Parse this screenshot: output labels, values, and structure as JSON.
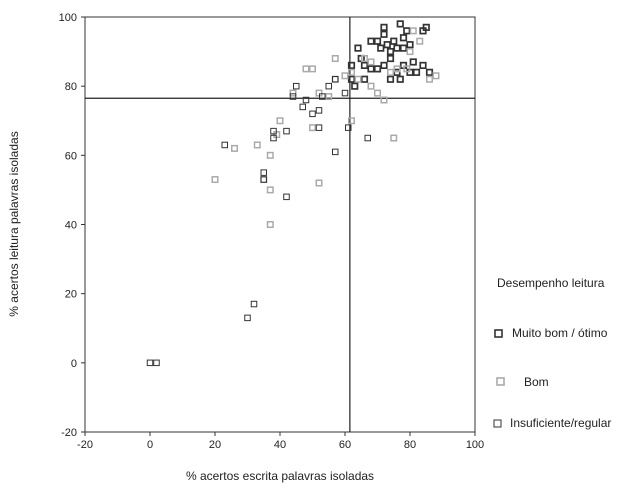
{
  "chart_data": {
    "type": "scatter",
    "xlabel": "% acertos escrita palavras isoladas",
    "ylabel": "% acertos leitura palavras isoladas",
    "xlim": [
      -20,
      100
    ],
    "ylim": [
      -20,
      100
    ],
    "xticks": [
      -20,
      0,
      20,
      40,
      60,
      80,
      100
    ],
    "yticks": [
      -20,
      0,
      20,
      40,
      60,
      80,
      100
    ],
    "grid": false,
    "reference_lines": {
      "x": 61.5,
      "y": 76.5
    },
    "legend": {
      "title": "Desempenho leitura",
      "placement": "right",
      "entries": [
        "Muito bom / ótimo",
        "Bom",
        "Insuficiente/regular"
      ]
    },
    "series": [
      {
        "name": "Muito bom / ótimo",
        "color": "#333333",
        "points": [
          [
            64,
            91
          ],
          [
            65,
            88
          ],
          [
            66,
            86
          ],
          [
            68,
            93
          ],
          [
            70,
            93
          ],
          [
            71,
            91
          ],
          [
            72,
            97
          ],
          [
            72,
            95
          ],
          [
            73,
            92
          ],
          [
            74,
            90
          ],
          [
            75,
            93
          ],
          [
            76,
            91
          ],
          [
            77,
            98
          ],
          [
            78,
            94
          ],
          [
            79,
            96
          ],
          [
            80,
            92
          ],
          [
            81,
            87
          ],
          [
            82,
            84
          ],
          [
            84,
            86
          ],
          [
            85,
            97
          ],
          [
            86,
            84
          ],
          [
            66,
            82
          ],
          [
            68,
            85
          ],
          [
            72,
            86
          ],
          [
            74,
            82
          ],
          [
            76,
            84
          ],
          [
            78,
            86
          ],
          [
            80,
            84
          ],
          [
            77,
            82
          ],
          [
            62,
            86
          ],
          [
            63,
            80
          ],
          [
            70,
            85
          ],
          [
            74,
            88
          ],
          [
            84,
            96
          ],
          [
            62,
            82
          ],
          [
            78,
            91
          ]
        ]
      },
      {
        "name": "Bom",
        "color": "#aaaaaa",
        "points": [
          [
            48,
            85
          ],
          [
            50,
            85
          ],
          [
            57,
            88
          ],
          [
            57,
            82
          ],
          [
            60,
            83
          ],
          [
            62,
            84
          ],
          [
            64,
            82
          ],
          [
            66,
            88
          ],
          [
            68,
            80
          ],
          [
            70,
            78
          ],
          [
            72,
            76
          ],
          [
            74,
            84
          ],
          [
            76,
            85
          ],
          [
            79,
            85
          ],
          [
            80,
            90
          ],
          [
            81,
            96
          ],
          [
            83,
            93
          ],
          [
            86,
            82
          ],
          [
            88,
            83
          ],
          [
            75,
            65
          ],
          [
            62,
            70
          ],
          [
            50,
            68
          ],
          [
            52,
            78
          ],
          [
            55,
            77
          ],
          [
            44,
            78
          ],
          [
            40,
            70
          ],
          [
            39,
            66
          ],
          [
            37,
            60
          ],
          [
            37,
            50
          ],
          [
            37,
            40
          ],
          [
            33,
            63
          ],
          [
            26,
            62
          ],
          [
            20,
            53
          ],
          [
            35,
            53
          ],
          [
            52,
            52
          ],
          [
            68,
            87
          ]
        ]
      },
      {
        "name": "Insuficiente/regular",
        "color": "#333333",
        "points": [
          [
            0,
            0
          ],
          [
            2,
            0
          ],
          [
            30,
            13
          ],
          [
            32,
            17
          ],
          [
            23,
            63
          ],
          [
            35,
            55
          ],
          [
            35,
            53
          ],
          [
            38,
            65
          ],
          [
            38,
            67
          ],
          [
            42,
            48
          ],
          [
            42,
            67
          ],
          [
            44,
            77
          ],
          [
            45,
            80
          ],
          [
            47,
            74
          ],
          [
            48,
            76
          ],
          [
            50,
            72
          ],
          [
            52,
            73
          ],
          [
            52,
            68
          ],
          [
            53,
            77
          ],
          [
            55,
            80
          ],
          [
            57,
            82
          ],
          [
            57,
            61
          ],
          [
            60,
            78
          ],
          [
            61,
            68
          ],
          [
            67,
            65
          ]
        ]
      }
    ]
  }
}
